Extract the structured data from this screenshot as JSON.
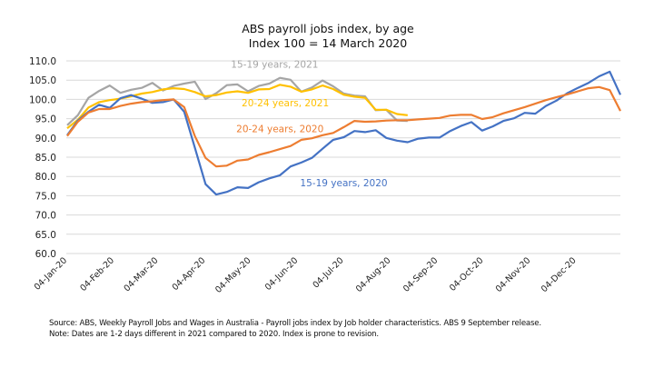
{
  "chart_data": {
    "type": "line",
    "title": "ABS payroll jobs index, by age",
    "subtitle": "Index 100 = 14 March 2020",
    "xlabel": "",
    "ylabel": "",
    "ylim": [
      60,
      110
    ],
    "ytick_step": 5,
    "ytick_labels": [
      "60.0",
      "65.0",
      "70.0",
      "75.0",
      "80.0",
      "85.0",
      "90.0",
      "95.0",
      "100.0",
      "105.0",
      "110.0"
    ],
    "x_tick_labels": [
      "04-Jan-20",
      "04-Feb-20",
      "04-Mar-20",
      "04-Apr-20",
      "04-May-20",
      "04-Jun-20",
      "04-Jul-20",
      "04-Aug-20",
      "04-Sep-20",
      "04-Oct-20",
      "04-Nov-20",
      "04-Dec-20"
    ],
    "x_unit": "weeks from 04-Jan",
    "x_tick_weeks": [
      0,
      4.43,
      8.57,
      13,
      17.29,
      21.71,
      26,
      30.43,
      34.86,
      39.14,
      43.57,
      47.86
    ],
    "x_range_weeks": [
      0,
      52
    ],
    "grid": true,
    "legend": "inline annotations",
    "series": [
      {
        "name": "15-19 years, 2020",
        "color": "#4472C4",
        "values": [
          90.7,
          94.5,
          96.8,
          98.6,
          97.8,
          100.3,
          101.1,
          100.2,
          99.1,
          99.3,
          100.0,
          96.8,
          87.5,
          78.0,
          75.3,
          76.0,
          77.2,
          77.0,
          78.5,
          79.5,
          80.3,
          82.6,
          83.6,
          84.8,
          87.2,
          89.5,
          90.2,
          91.8,
          91.5,
          92.0,
          90.0,
          89.3,
          88.9,
          89.8,
          90.1,
          90.1,
          91.8,
          93.1,
          94.1,
          91.9,
          93.0,
          94.4,
          95.1,
          96.5,
          96.3,
          98.3,
          99.7,
          101.6,
          103.0,
          104.3,
          106.0,
          107.2,
          101.2
        ]
      },
      {
        "name": "20-24 years, 2020",
        "color": "#ED7D31",
        "values": [
          90.5,
          94.2,
          96.6,
          97.5,
          97.5,
          98.3,
          98.9,
          99.3,
          99.5,
          99.8,
          100.0,
          98.0,
          90.5,
          84.8,
          82.6,
          82.8,
          84.1,
          84.4,
          85.6,
          86.3,
          87.1,
          87.9,
          89.5,
          89.9,
          90.7,
          91.3,
          92.8,
          94.4,
          94.2,
          94.3,
          94.5,
          94.6,
          94.6,
          94.8,
          95.0,
          95.2,
          95.8,
          96.0,
          96.0,
          94.9,
          95.4,
          96.4,
          97.2,
          98.0,
          98.9,
          99.8,
          100.6,
          101.3,
          102.1,
          102.9,
          103.2,
          102.4,
          97.0
        ]
      },
      {
        "name": "15-19 years, 2021",
        "color": "#A5A5A5",
        "values": [
          93.3,
          95.9,
          100.4,
          102.2,
          103.6,
          101.7,
          102.5,
          103.0,
          104.3,
          102.3,
          103.5,
          104.1,
          104.6,
          100.1,
          101.6,
          103.7,
          103.9,
          102.1,
          103.5,
          104.1,
          105.6,
          105.1,
          102.0,
          103.1,
          104.9,
          103.4,
          101.5,
          101.0,
          100.8,
          97.2,
          97.3,
          94.5,
          94.4
        ]
      },
      {
        "name": "20-24 years, 2021",
        "color": "#FFC000",
        "values": [
          92.5,
          94.7,
          97.9,
          99.3,
          99.8,
          100.2,
          100.8,
          101.5,
          101.9,
          102.6,
          102.9,
          102.7,
          101.9,
          100.8,
          101.1,
          101.8,
          102.1,
          101.7,
          102.6,
          102.7,
          103.8,
          103.3,
          102.0,
          102.6,
          103.6,
          102.7,
          101.2,
          100.7,
          100.4,
          97.3,
          97.3,
          96.2,
          95.9
        ]
      }
    ],
    "annotations": [
      {
        "text": "15-19 years, 2021",
        "series": "15-19 years, 2021",
        "week": 19.5,
        "value": 108.2
      },
      {
        "text": "20-24 years, 2021",
        "series": "20-24 years, 2021",
        "week": 20.5,
        "value": 98.2
      },
      {
        "text": "20-24 years, 2020",
        "series": "20-24 years, 2020",
        "week": 20.0,
        "value": 91.5
      },
      {
        "text": "15-19 years, 2020",
        "series": "15-19 years, 2020",
        "week": 26.0,
        "value": 77.5
      }
    ]
  },
  "footnote": "Source: ABS, Weekly Payroll Jobs and Wages in Australia - Payroll jobs index by Job holder characteristics. ABS  9 September release. Note: Dates are 1-2 days different in 2021 compared to 2020. Index is prone to revision."
}
